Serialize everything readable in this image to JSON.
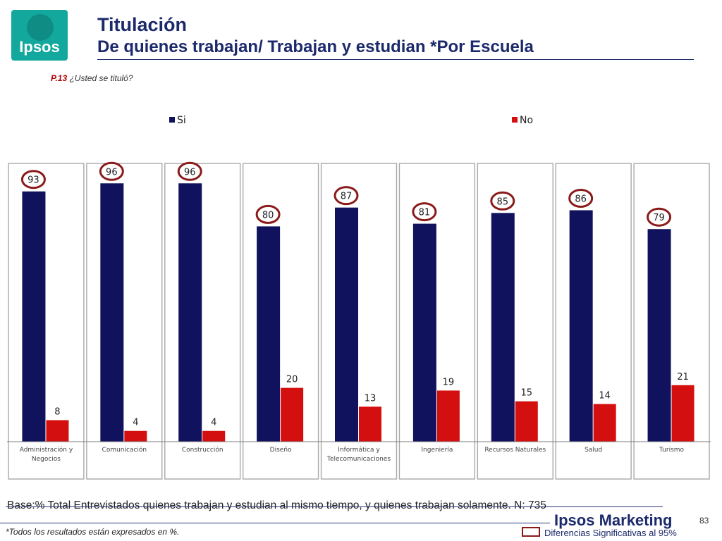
{
  "logo": {
    "text": "Ipsos"
  },
  "title": "Titulación",
  "subtitle": "De quienes trabajan/ Trabajan y estudian *Por Escuela",
  "question": {
    "number": "P.13",
    "text": " ¿Usted se tituló?"
  },
  "chart_data": {
    "type": "bar",
    "categories": [
      "Administración y Negocios",
      "Comunicación",
      "Construcción",
      "Diseño",
      "Informática y Telecomunicaciones",
      "Ingeniería",
      "Recursos Naturales",
      "Salud",
      "Turismo"
    ],
    "category_lines": [
      [
        "Administración y",
        "Negocios"
      ],
      [
        "Comunicación"
      ],
      [
        "Construcción"
      ],
      [
        "Diseño"
      ],
      [
        "Informática y",
        "Telecomunicaciones"
      ],
      [
        "Ingeniería"
      ],
      [
        "Recursos Naturales"
      ],
      [
        "Salud"
      ],
      [
        "Turismo"
      ]
    ],
    "series": [
      {
        "name": "Si",
        "values": [
          93,
          96,
          96,
          80,
          87,
          81,
          85,
          86,
          79
        ],
        "color": "#10125e"
      },
      {
        "name": "No",
        "values": [
          8,
          4,
          4,
          20,
          13,
          19,
          15,
          14,
          21
        ],
        "color": "#d40f0f"
      }
    ],
    "ylim": [
      0,
      100
    ],
    "legend_position": "top",
    "highlighted_series": "Si",
    "highlight_color": "#8b1a1a"
  },
  "base_note": "Base:% Total Entrevistados quienes trabajan y estudian al mismo tiempo, y quienes trabajan solamente. N: 735",
  "footnote": "*Todos los resultados están expresados en %.",
  "brand": "Ipsos Marketing",
  "page_number": "83",
  "legend_note": "Diferencias Significativas al 95%"
}
